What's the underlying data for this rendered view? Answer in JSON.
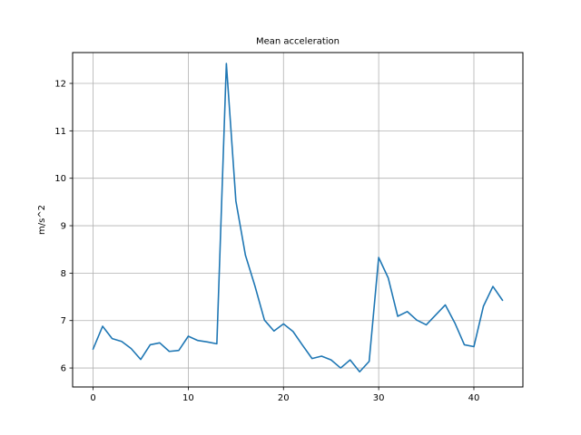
{
  "chart_data": {
    "type": "line",
    "title": "Mean acceleration",
    "xlabel": "",
    "ylabel": "m/s^2",
    "xlim": [
      -2.15,
      45.15
    ],
    "ylim": [
      5.6,
      12.65
    ],
    "xticks": [
      0,
      10,
      20,
      30,
      40
    ],
    "yticks": [
      6,
      7,
      8,
      9,
      10,
      11,
      12
    ],
    "grid": true,
    "line_color": "#1f77b4",
    "grid_color": "#b0b0b0",
    "x": [
      0,
      1,
      2,
      3,
      4,
      5,
      6,
      7,
      8,
      9,
      10,
      11,
      12,
      13,
      14,
      15,
      16,
      17,
      18,
      19,
      20,
      21,
      22,
      23,
      24,
      25,
      26,
      27,
      28,
      29,
      30,
      31,
      32,
      33,
      34,
      35,
      36,
      37,
      38,
      39,
      40,
      41,
      42,
      43
    ],
    "series": [
      {
        "values": [
          6.4,
          6.88,
          6.62,
          6.56,
          6.41,
          6.18,
          6.49,
          6.53,
          6.35,
          6.37,
          6.67,
          6.58,
          6.55,
          6.51,
          12.42,
          9.52,
          8.38,
          7.73,
          7.01,
          6.78,
          6.93,
          6.77,
          6.48,
          6.2,
          6.25,
          6.17,
          6.0,
          6.17,
          5.92,
          6.14,
          8.33,
          7.9,
          7.09,
          7.19,
          7.01,
          6.91,
          7.12,
          7.33,
          6.95,
          6.49,
          6.45,
          7.3,
          7.72,
          7.43
        ]
      }
    ]
  }
}
